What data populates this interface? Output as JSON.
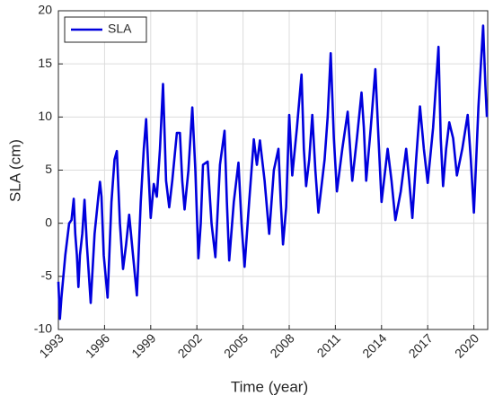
{
  "chart_data": {
    "type": "line",
    "xlabel": "Time (year)",
    "ylabel": "SLA (cm)",
    "x": [
      1993.0,
      1993.1,
      1993.2,
      1993.45,
      1993.7,
      1993.85,
      1994.0,
      1994.1,
      1994.2,
      1994.3,
      1994.4,
      1994.55,
      1994.7,
      1994.85,
      1995.1,
      1995.35,
      1995.6,
      1995.7,
      1995.8,
      1995.95,
      1996.2,
      1996.45,
      1996.65,
      1996.8,
      1997.0,
      1997.2,
      1997.4,
      1997.6,
      1997.85,
      1998.1,
      1998.35,
      1998.55,
      1998.7,
      1998.85,
      1999.0,
      1999.2,
      1999.4,
      1999.6,
      1999.8,
      2000.0,
      2000.2,
      2000.4,
      2000.7,
      2000.9,
      2001.05,
      2001.2,
      2001.45,
      2001.7,
      2001.9,
      2002.1,
      2002.25,
      2002.4,
      2002.7,
      2002.95,
      2003.2,
      2003.5,
      2003.8,
      2003.95,
      2004.1,
      2004.4,
      2004.7,
      2004.9,
      2005.1,
      2005.4,
      2005.7,
      2005.9,
      2006.1,
      2006.4,
      2006.7,
      2007.0,
      2007.3,
      2007.45,
      2007.6,
      2007.8,
      2008.0,
      2008.2,
      2008.5,
      2008.8,
      2008.95,
      2009.1,
      2009.3,
      2009.5,
      2009.7,
      2009.9,
      2010.3,
      2010.5,
      2010.7,
      2010.9,
      2011.1,
      2011.45,
      2011.8,
      2012.1,
      2012.4,
      2012.7,
      2012.85,
      2013.0,
      2013.3,
      2013.6,
      2013.8,
      2014.0,
      2014.4,
      2014.65,
      2014.9,
      2015.25,
      2015.6,
      2015.8,
      2016.0,
      2016.25,
      2016.5,
      2016.75,
      2017.0,
      2017.35,
      2017.7,
      2017.85,
      2018.0,
      2018.2,
      2018.4,
      2018.65,
      2018.9,
      2019.25,
      2019.6,
      2019.8,
      2020.0,
      2020.15,
      2020.3,
      2020.6,
      2020.75,
      2020.85
    ],
    "series": [
      {
        "name": "SLA",
        "color": "#0000dd",
        "values": [
          -5.5,
          -9,
          -7,
          -3,
          0,
          0.3,
          2.3,
          -1,
          -3,
          -6,
          -3,
          -1,
          2.2,
          -2,
          -7.5,
          -1,
          2.5,
          3.9,
          2.5,
          -3,
          -7,
          2,
          6,
          6.8,
          0,
          -4.3,
          -2,
          0.8,
          -3,
          -6.8,
          2,
          7,
          9.8,
          5,
          0.5,
          3.7,
          2.5,
          7,
          13.1,
          4,
          1.5,
          4,
          8.5,
          8.5,
          4,
          1.3,
          5,
          10.9,
          5,
          -3.3,
          0,
          5.5,
          5.8,
          0,
          -3.2,
          5.5,
          8.7,
          2,
          -3.5,
          2,
          5.7,
          0,
          -4.1,
          2,
          7.9,
          5.5,
          7.8,
          4,
          -1,
          5,
          7,
          2,
          -2,
          1.5,
          10.2,
          4.5,
          9,
          14,
          7,
          3.5,
          6,
          10.2,
          5,
          1,
          6,
          10,
          16,
          8,
          3,
          7,
          10.5,
          4,
          8,
          12.3,
          9,
          4,
          9,
          14.5,
          8,
          2,
          7,
          4,
          0.3,
          3,
          7,
          4,
          0.5,
          6,
          11,
          7,
          3.8,
          9,
          16.6,
          8,
          3.5,
          7,
          9.5,
          8,
          4.5,
          7,
          10.2,
          6,
          1,
          6,
          11,
          18.6,
          13,
          10
        ]
      }
    ],
    "xlim": [
      1993,
      2020.9
    ],
    "xticks": [
      1993,
      1996,
      1999,
      2002,
      2005,
      2008,
      2011,
      2014,
      2017,
      2020
    ],
    "ylim": [
      -10,
      20
    ],
    "yticks": [
      -10,
      -5,
      0,
      5,
      10,
      15,
      20
    ],
    "grid": true,
    "legend": "top-left"
  }
}
